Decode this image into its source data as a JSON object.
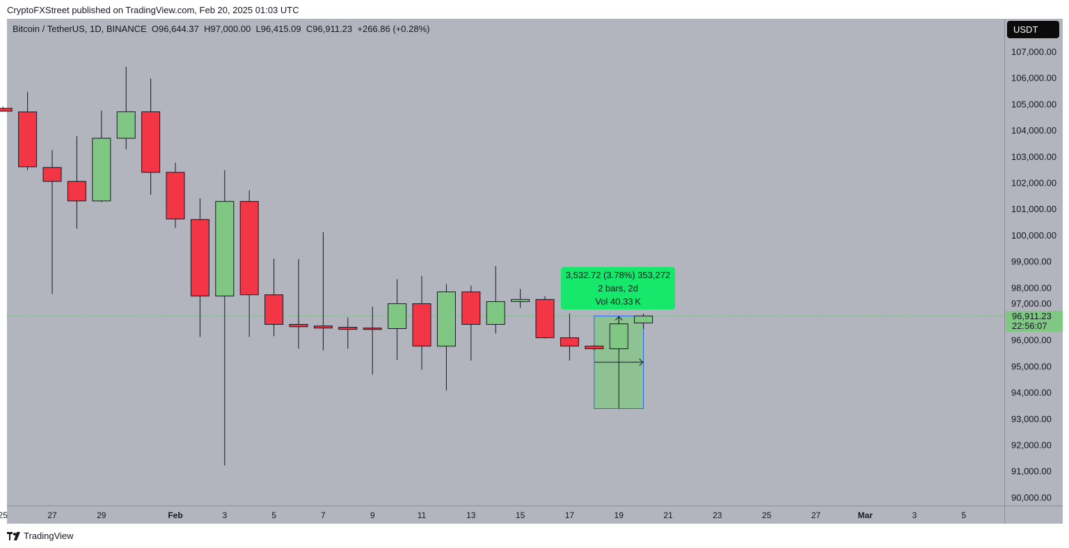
{
  "header": {
    "published": "CryptoFXStreet published on TradingView.com, Feb 20, 2025 01:03 UTC"
  },
  "legend": {
    "symbol": "Bitcoin / TetherUS, 1D, BINANCE",
    "open": "O96,644.37",
    "high": "H97,000.00",
    "low": "L96,415.09",
    "close": "C96,911.23",
    "change": "+266.86 (+0.28%)"
  },
  "price_axis": {
    "currency": "USDT",
    "last_price": "96,911.23",
    "countdown": "22:56:07"
  },
  "measure": {
    "line1": "3,532.72 (3.78%) 353,272",
    "line2": "2 bars, 2d",
    "line3": "Vol 40.33 K",
    "from_date": "2025-02-18",
    "to_date": "2025-02-20",
    "from_price": 93378.51,
    "to_price": 96911.23
  },
  "footer": {
    "brand": "TradingView"
  },
  "colors": {
    "background": "#b2b5be",
    "up": "#81c784",
    "down": "#f23645",
    "measure_fill": "#81c784",
    "measure_label": "#15e86a",
    "axis_badge": "#0b0b0b"
  },
  "chart_data": {
    "type": "candlestick",
    "title": "Bitcoin / TetherUS, 1D, BINANCE",
    "ylim": [
      89700,
      108300
    ],
    "grid": false,
    "y_ticks": [
      "107,000.00",
      "106,000.00",
      "105,000.00",
      "104,000.00",
      "103,000.00",
      "102,000.00",
      "101,000.00",
      "100,000.00",
      "99,000.00",
      "98,000.00",
      "97,000.00",
      "96,000.00",
      "95,000.00",
      "94,000.00",
      "93,000.00",
      "92,000.00",
      "91,000.00",
      "90,000.00"
    ],
    "x_ticks": [
      {
        "label": "25",
        "date": "2025-01-25"
      },
      {
        "label": "27",
        "date": "2025-01-27"
      },
      {
        "label": "29",
        "date": "2025-01-29"
      },
      {
        "label": "Feb",
        "date": "2025-02-01",
        "bold": true
      },
      {
        "label": "3",
        "date": "2025-02-03"
      },
      {
        "label": "5",
        "date": "2025-02-05"
      },
      {
        "label": "7",
        "date": "2025-02-07"
      },
      {
        "label": "9",
        "date": "2025-02-09"
      },
      {
        "label": "11",
        "date": "2025-02-11"
      },
      {
        "label": "13",
        "date": "2025-02-13"
      },
      {
        "label": "15",
        "date": "2025-02-15"
      },
      {
        "label": "17",
        "date": "2025-02-17"
      },
      {
        "label": "19",
        "date": "2025-02-19"
      },
      {
        "label": "21",
        "date": "2025-02-21"
      },
      {
        "label": "23",
        "date": "2025-02-23"
      },
      {
        "label": "25",
        "date": "2025-02-25"
      },
      {
        "label": "27",
        "date": "2025-02-27"
      },
      {
        "label": "Mar",
        "date": "2025-03-01",
        "bold": true
      },
      {
        "label": "3",
        "date": "2025-03-03"
      },
      {
        "label": "5",
        "date": "2025-03-05"
      }
    ],
    "candles": [
      {
        "date": "2025-01-25",
        "o": 104830,
        "h": 104900,
        "l": 104700,
        "c": 104720
      },
      {
        "date": "2025-01-26",
        "o": 104695,
        "h": 105460,
        "l": 102470,
        "c": 102600
      },
      {
        "date": "2025-01-27",
        "o": 102575,
        "h": 103240,
        "l": 97750,
        "c": 102045
      },
      {
        "date": "2025-01-28",
        "o": 102045,
        "h": 103770,
        "l": 100240,
        "c": 101300
      },
      {
        "date": "2025-01-29",
        "o": 101300,
        "h": 104750,
        "l": 101250,
        "c": 103690
      },
      {
        "date": "2025-01-30",
        "o": 103690,
        "h": 106420,
        "l": 103260,
        "c": 104700
      },
      {
        "date": "2025-01-31",
        "o": 104700,
        "h": 105970,
        "l": 101540,
        "c": 102390
      },
      {
        "date": "2025-02-01",
        "o": 102390,
        "h": 102760,
        "l": 100270,
        "c": 100610
      },
      {
        "date": "2025-02-02",
        "o": 100590,
        "h": 101400,
        "l": 96110,
        "c": 97670
      },
      {
        "date": "2025-02-03",
        "o": 97670,
        "h": 102470,
        "l": 91210,
        "c": 101280
      },
      {
        "date": "2025-02-04",
        "o": 101280,
        "h": 101700,
        "l": 96110,
        "c": 97720
      },
      {
        "date": "2025-02-05",
        "o": 97720,
        "h": 99100,
        "l": 96140,
        "c": 96590
      },
      {
        "date": "2025-02-06",
        "o": 96590,
        "h": 99080,
        "l": 95660,
        "c": 96500
      },
      {
        "date": "2025-02-07",
        "o": 96530,
        "h": 100110,
        "l": 95600,
        "c": 96450
      },
      {
        "date": "2025-02-08",
        "o": 96480,
        "h": 96850,
        "l": 95660,
        "c": 96400
      },
      {
        "date": "2025-02-09",
        "o": 96450,
        "h": 97270,
        "l": 94680,
        "c": 96430
      },
      {
        "date": "2025-02-10",
        "o": 96430,
        "h": 98310,
        "l": 95230,
        "c": 97380
      },
      {
        "date": "2025-02-11",
        "o": 97380,
        "h": 98440,
        "l": 94860,
        "c": 95760
      },
      {
        "date": "2025-02-12",
        "o": 95760,
        "h": 98120,
        "l": 94070,
        "c": 97830
      },
      {
        "date": "2025-02-13",
        "o": 97830,
        "h": 98070,
        "l": 95210,
        "c": 96590
      },
      {
        "date": "2025-02-14",
        "o": 96590,
        "h": 98810,
        "l": 96240,
        "c": 97460
      },
      {
        "date": "2025-02-15",
        "o": 97460,
        "h": 97940,
        "l": 97220,
        "c": 97540
      },
      {
        "date": "2025-02-16",
        "o": 97540,
        "h": 97670,
        "l": 96055,
        "c": 96080
      },
      {
        "date": "2025-02-17",
        "o": 96080,
        "h": 97010,
        "l": 95210,
        "c": 95760
      },
      {
        "date": "2025-02-18",
        "o": 95760,
        "h": 95800,
        "l": 95600,
        "c": 95660
      },
      {
        "date": "2025-02-19",
        "o": 95660,
        "h": 96900,
        "l": 95600,
        "c": 96610
      },
      {
        "date": "2025-02-20",
        "o": 96644.37,
        "h": 97000.0,
        "l": 96415.09,
        "c": 96911.23
      }
    ]
  }
}
